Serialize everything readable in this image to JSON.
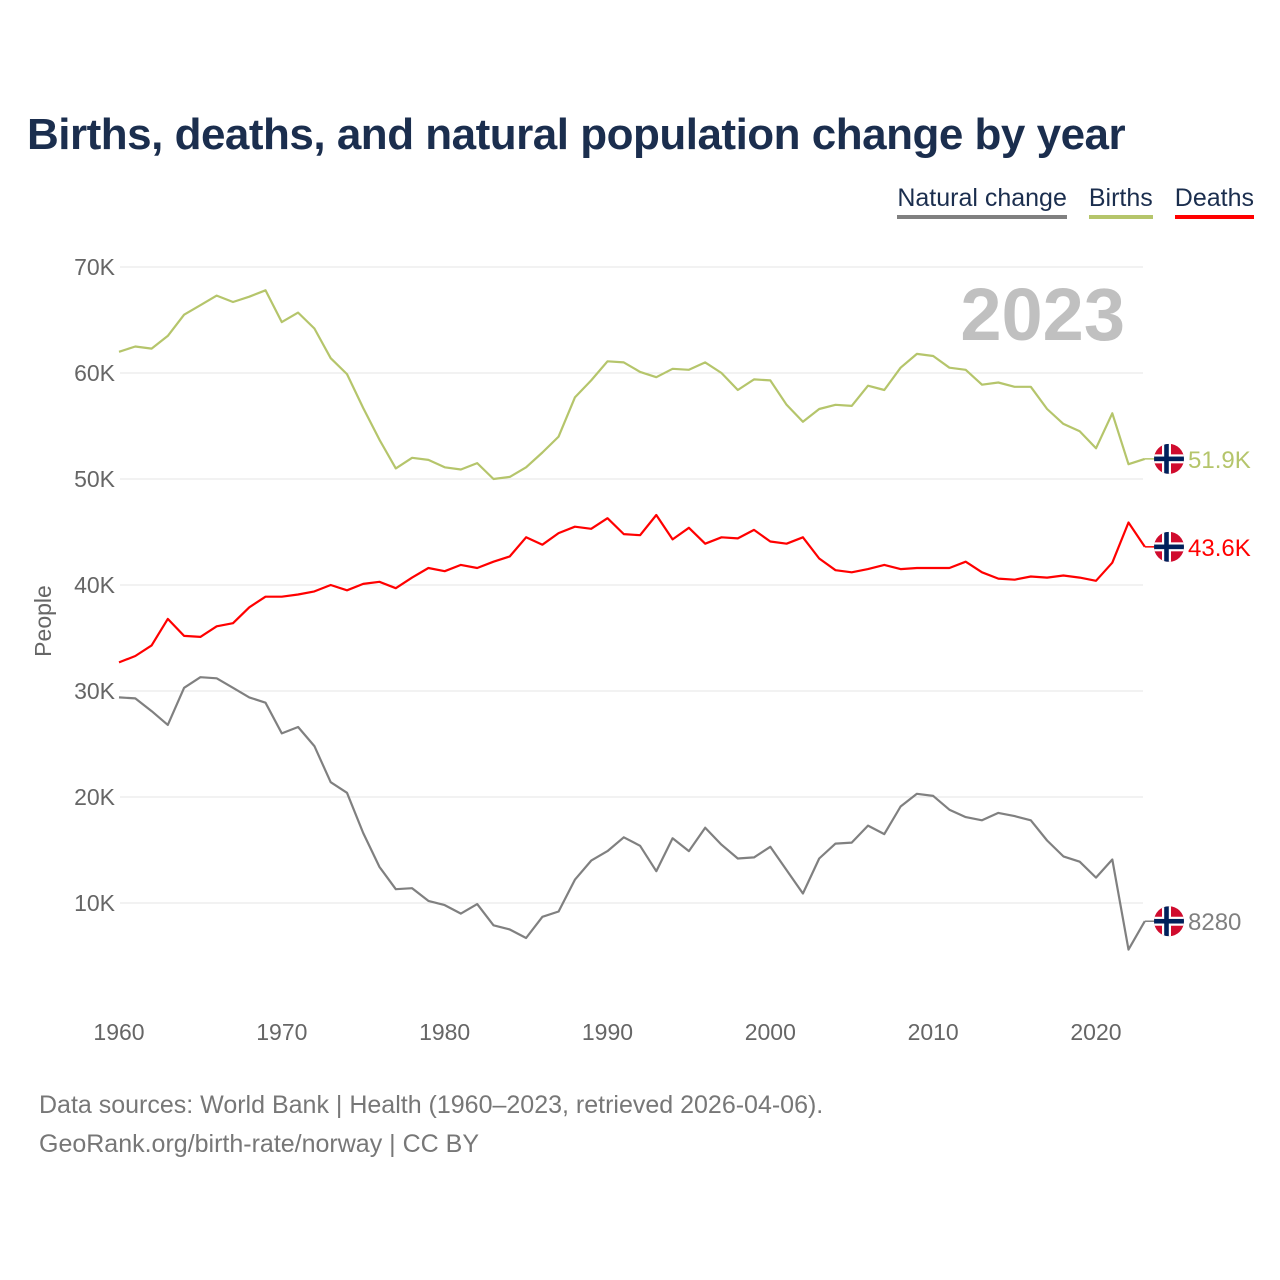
{
  "title": "Births, deaths, and natural population change by year",
  "legend": [
    {
      "label": "Natural change",
      "color": "#808080"
    },
    {
      "label": "Births",
      "color": "#b5c56b"
    },
    {
      "label": "Deaths",
      "color": "#ff0000"
    }
  ],
  "footer": {
    "line1": "Data sources: World Bank | Health (1960–2023, retrieved 2026-04-06).",
    "line2": "GeoRank.org/birth-rate/norway | CC BY"
  },
  "chart_data": {
    "type": "line",
    "title": "Births, deaths, and natural population change by year",
    "ylabel": "People",
    "xlabel": "",
    "year_label": "2023",
    "xlim": [
      1960,
      2023
    ],
    "ylim": [
      0,
      70000
    ],
    "x_ticks": [
      "1960",
      "1970",
      "1980",
      "1990",
      "2000",
      "2010",
      "2020"
    ],
    "y_ticks": [
      {
        "v": 10000,
        "label": "10K"
      },
      {
        "v": 20000,
        "label": "20K"
      },
      {
        "v": 30000,
        "label": "30K"
      },
      {
        "v": 40000,
        "label": "40K"
      },
      {
        "v": 50000,
        "label": "50K"
      },
      {
        "v": 60000,
        "label": "60K"
      },
      {
        "v": 70000,
        "label": "70K"
      }
    ],
    "grid": true,
    "legend_position": "top-right",
    "x_start": 1960,
    "series": [
      {
        "name": "Births",
        "color": "#b5c56b",
        "end_label": "51.9K",
        "values": [
          62000,
          62500,
          62300,
          63500,
          65500,
          66400,
          67300,
          66700,
          67200,
          67800,
          64800,
          65700,
          64200,
          61400,
          59900,
          56700,
          53700,
          51000,
          52000,
          51800,
          51100,
          50900,
          51500,
          50000,
          50200,
          51100,
          52500,
          54000,
          57700,
          59300,
          61100,
          61000,
          60100,
          59600,
          60400,
          60300,
          61000,
          60000,
          58400,
          59400,
          59300,
          57000,
          55400,
          56600,
          57000,
          56900,
          58800,
          58400,
          60500,
          61800,
          61600,
          60500,
          60300,
          58900,
          59100,
          58700,
          58700,
          56600,
          55200,
          54500,
          52900,
          56200,
          51400,
          51900
        ]
      },
      {
        "name": "Deaths",
        "color": "#ff0000",
        "end_label": "43.6K",
        "values": [
          32700,
          33300,
          34300,
          36800,
          35200,
          35100,
          36100,
          36400,
          37900,
          38900,
          38900,
          39100,
          39400,
          40000,
          39500,
          40100,
          40300,
          39700,
          40700,
          41600,
          41300,
          41900,
          41600,
          42200,
          42700,
          44500,
          43800,
          44900,
          45500,
          45300,
          46300,
          44800,
          44700,
          46600,
          44300,
          45400,
          43900,
          44500,
          44400,
          45200,
          44100,
          43900,
          44500,
          42500,
          41400,
          41200,
          41500,
          41900,
          41500,
          41600,
          41600,
          41600,
          42200,
          41200,
          40600,
          40500,
          40800,
          40700,
          40900,
          40700,
          40400,
          42100,
          45900,
          43600
        ]
      },
      {
        "name": "Natural change",
        "color": "#808080",
        "end_label": "8280",
        "values": [
          29400,
          29300,
          28100,
          26800,
          30300,
          31300,
          31200,
          30300,
          29400,
          28900,
          26000,
          26600,
          24800,
          21400,
          20400,
          16600,
          13400,
          11300,
          11400,
          10200,
          9800,
          9000,
          9900,
          7900,
          7500,
          6700,
          8700,
          9200,
          12200,
          14000,
          14900,
          16200,
          15400,
          13000,
          16100,
          14900,
          17100,
          15500,
          14200,
          14300,
          15300,
          13100,
          10900,
          14200,
          15600,
          15700,
          17300,
          16500,
          19100,
          20300,
          20100,
          18800,
          18100,
          17800,
          18500,
          18200,
          17800,
          15900,
          14400,
          13900,
          12400,
          14100,
          5600,
          8280
        ]
      }
    ]
  }
}
